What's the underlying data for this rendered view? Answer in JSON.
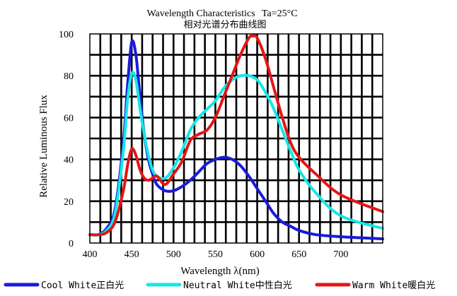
{
  "chart_data": {
    "type": "line",
    "title": "Wavelength Characteristics",
    "title_condition": "Ta=25°C",
    "subtitle": "相对光谱分布曲线图",
    "xlabel": "Wavelength λ(nm)",
    "ylabel": "Relative Luminous Flux",
    "xlim": [
      400,
      750
    ],
    "ylim": [
      0,
      100
    ],
    "x_ticks": [
      400,
      450,
      500,
      550,
      600,
      650,
      700
    ],
    "y_ticks": [
      0,
      20,
      40,
      60,
      80,
      100
    ],
    "grid": true,
    "legend_position": "bottom",
    "series": [
      {
        "name": "Cool White正白光",
        "color": "#1a1adc",
        "x": [
          400,
          410,
          420,
          430,
          440,
          445,
          450,
          455,
          460,
          465,
          470,
          475,
          480,
          490,
          500,
          510,
          520,
          530,
          540,
          550,
          560,
          570,
          580,
          590,
          600,
          610,
          620,
          630,
          640,
          650,
          670,
          700,
          750
        ],
        "y": [
          4,
          4,
          7,
          16,
          48,
          75,
          96,
          90,
          70,
          52,
          40,
          33,
          28,
          25,
          25,
          27,
          30,
          34,
          38,
          40,
          41,
          40,
          37,
          32,
          26,
          20,
          14,
          10,
          8,
          6,
          4,
          3,
          2
        ]
      },
      {
        "name": "Neutral White中性白光",
        "color": "#16e6e6",
        "x": [
          400,
          410,
          420,
          430,
          440,
          445,
          450,
          455,
          460,
          465,
          470,
          475,
          480,
          490,
          500,
          510,
          520,
          530,
          540,
          550,
          560,
          570,
          580,
          590,
          600,
          610,
          620,
          630,
          640,
          650,
          670,
          700,
          750
        ],
        "y": [
          4,
          4,
          6,
          14,
          44,
          68,
          81,
          78,
          64,
          52,
          42,
          35,
          32,
          31,
          36,
          44,
          54,
          60,
          64,
          68,
          74,
          78,
          80,
          80,
          78,
          72,
          64,
          54,
          44,
          35,
          24,
          13,
          7
        ]
      },
      {
        "name": "Warm White暖白光",
        "color": "#e61414",
        "x": [
          400,
          410,
          420,
          430,
          440,
          445,
          450,
          455,
          460,
          465,
          470,
          475,
          480,
          490,
          500,
          510,
          520,
          530,
          540,
          550,
          560,
          570,
          580,
          590,
          595,
          600,
          610,
          620,
          630,
          640,
          650,
          670,
          700,
          750
        ],
        "y": [
          4,
          4,
          5,
          10,
          25,
          37,
          45,
          42,
          35,
          31,
          30,
          31,
          32,
          28,
          33,
          39,
          49,
          52,
          54,
          60,
          70,
          80,
          90,
          98,
          99,
          98,
          88,
          74,
          60,
          48,
          41,
          33,
          23,
          15
        ]
      }
    ]
  }
}
